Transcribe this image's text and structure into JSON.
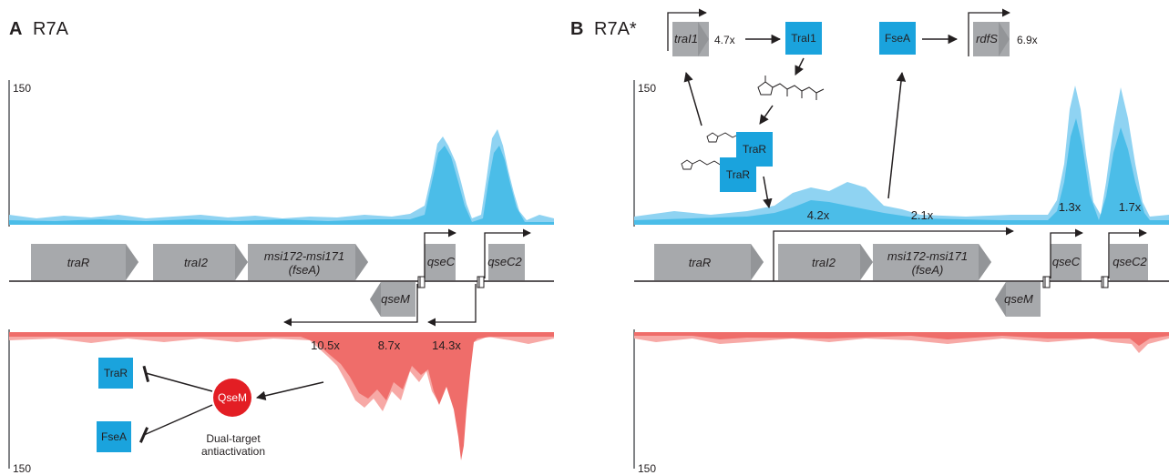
{
  "panels": [
    {
      "letter": "A",
      "strain": "R7A"
    },
    {
      "letter": "B",
      "strain": "R7A*"
    }
  ],
  "axis_max_label": "150",
  "genes": {
    "traR": "traR",
    "traI2": "traI2",
    "msi": "msi172-msi171",
    "fseA_paren": "(fseA)",
    "qseM": "qseM",
    "qseC": "qseC",
    "qseC2": "qseC2",
    "traI1": "traI1",
    "rdfS": "rdfS"
  },
  "fold_changes": {
    "A_red": [
      "10.5x",
      "8.7x",
      "14.3x"
    ],
    "B_blue": [
      "4.2x",
      "2.1x",
      "1.3x",
      "1.7x"
    ],
    "traI1": "4.7x",
    "rdfS": "6.9x"
  },
  "proteins": {
    "TraR": "TraR",
    "FseA": "FseA",
    "QseM": "QseM",
    "TraI1": "TraI1"
  },
  "caption_A": [
    "Dual-target",
    "antiactivation"
  ],
  "colors": {
    "blue_light": "#8fd3f2",
    "blue_dark": "#4bbde8",
    "red_light": "#f7a9a6",
    "red_dark": "#ef6d6a",
    "protein_box": "#1aa3dd",
    "gene_box": "#a7a9ac",
    "qsem_circle": "#e31e24"
  }
}
